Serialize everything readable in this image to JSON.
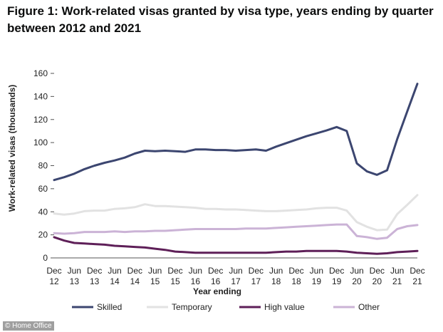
{
  "title": "Figure 1: Work-related visas granted by visa type, years ending by quarter between 2012 and 2021",
  "credit": "© Home Office",
  "chart_data": {
    "type": "line",
    "xlabel": "Year ending",
    "ylabel": "Work-related visas (thousands)",
    "ylim": [
      0,
      160
    ],
    "yticks": [
      0,
      20,
      40,
      60,
      80,
      100,
      120,
      140,
      160
    ],
    "grid": false,
    "legend_position": "bottom",
    "x": [
      "Dec 12",
      "Mar 13",
      "Jun 13",
      "Sep 13",
      "Dec 13",
      "Mar 14",
      "Jun 14",
      "Sep 14",
      "Dec 14",
      "Mar 15",
      "Jun 15",
      "Sep 15",
      "Dec 15",
      "Mar 16",
      "Jun 16",
      "Sep 16",
      "Dec 16",
      "Mar 17",
      "Jun 17",
      "Sep 17",
      "Dec 17",
      "Mar 18",
      "Jun 18",
      "Sep 18",
      "Dec 18",
      "Mar 19",
      "Jun 19",
      "Sep 19",
      "Dec 19",
      "Mar 20",
      "Jun 20",
      "Sep 20",
      "Dec 20",
      "Mar 21",
      "Jun 21",
      "Sep 21",
      "Dec 21"
    ],
    "xtick_labels": [
      {
        "month": "Dec",
        "year": "12"
      },
      {
        "month": "Jun",
        "year": "13"
      },
      {
        "month": "Dec",
        "year": "13"
      },
      {
        "month": "Jun",
        "year": "14"
      },
      {
        "month": "Dec",
        "year": "14"
      },
      {
        "month": "Jun",
        "year": "15"
      },
      {
        "month": "Dec",
        "year": "15"
      },
      {
        "month": "Jun",
        "year": "16"
      },
      {
        "month": "Dec",
        "year": "16"
      },
      {
        "month": "Jun",
        "year": "17"
      },
      {
        "month": "Dec",
        "year": "17"
      },
      {
        "month": "Jun",
        "year": "18"
      },
      {
        "month": "Dec",
        "year": "18"
      },
      {
        "month": "Jun",
        "year": "19"
      },
      {
        "month": "Dec",
        "year": "19"
      },
      {
        "month": "Jun",
        "year": "20"
      },
      {
        "month": "Dec",
        "year": "20"
      },
      {
        "month": "Jun",
        "year": "21"
      },
      {
        "month": "Dec",
        "year": "21"
      }
    ],
    "series": [
      {
        "name": "Skilled",
        "color": "#3c4670",
        "values": [
          67.5,
          70,
          73,
          77,
          80,
          82.5,
          84.5,
          87,
          90.5,
          93,
          92.5,
          93,
          92.5,
          92,
          94,
          94,
          93.5,
          93.5,
          93,
          93.5,
          94,
          93,
          96.5,
          99.5,
          102.5,
          105.5,
          108,
          110.5,
          113.5,
          110,
          82,
          75,
          72,
          76,
          103,
          127,
          151
        ]
      },
      {
        "name": "Temporary",
        "color": "#e2e2e2",
        "values": [
          38.5,
          37.5,
          38.5,
          40.5,
          41,
          41,
          42.5,
          43,
          44,
          46.5,
          45,
          45,
          44.5,
          44,
          43.5,
          42.5,
          42.5,
          42,
          42,
          41.5,
          41,
          40.5,
          40.5,
          41,
          41.5,
          42,
          43,
          43.5,
          43.5,
          41,
          31,
          27,
          24,
          24.5,
          38,
          46,
          54.5
        ]
      },
      {
        "name": "High value",
        "color": "#5e1f58",
        "values": [
          18,
          15,
          13,
          12.5,
          12,
          11.5,
          10.5,
          10,
          9.5,
          9,
          8,
          7,
          5.5,
          5,
          4.5,
          4.5,
          4.5,
          4.5,
          4.5,
          4.5,
          4.5,
          4.5,
          5,
          5.5,
          5.5,
          6,
          6,
          6,
          6,
          5.5,
          4.5,
          4,
          3.5,
          4,
          5,
          5.5,
          6
        ]
      },
      {
        "name": "Other",
        "color": "#cbb3d6",
        "values": [
          21.5,
          21,
          21.5,
          22.5,
          22.5,
          22.5,
          23,
          22.5,
          23,
          23,
          23.5,
          23.5,
          24,
          24.5,
          25,
          25,
          25,
          25,
          25,
          25.5,
          25.5,
          25.5,
          26,
          26.5,
          27,
          27.5,
          28,
          28.5,
          29,
          29,
          19,
          18,
          16.5,
          17.5,
          25,
          27.5,
          28.5
        ]
      }
    ]
  }
}
